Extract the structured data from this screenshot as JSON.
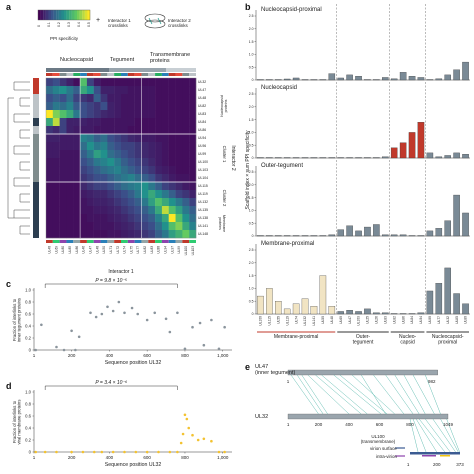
{
  "panel_letters": {
    "a": "a",
    "b": "b",
    "c": "c",
    "d": "d",
    "e": "e"
  },
  "colors": {
    "nucleocapsid_bar": "#c0392b",
    "membrane_bar": "#f1e4c3",
    "tegument_bar": "#7a8a96",
    "dark_bar": "#6c7a86",
    "scatter_c": "#8a949c",
    "scatter_d": "#f3c230",
    "ul47_bar": "#9aa5ad",
    "ul32_bar": "#9aa5ad",
    "link_lines": "#4bb3a6",
    "heatmap_low": "#440154",
    "heatmap_high": "#fde725"
  },
  "panel_a": {
    "legend": {
      "colorbar_label": "PPI specificity",
      "colorbar_ticks": [
        "0",
        "0.1",
        "0.2",
        "0.3",
        "0.4",
        "0.5"
      ],
      "plus": "+",
      "interactor1_label": "Interactor 1\ncrosslinks",
      "interactor2_label": "Interactor 2\ncrosslinks"
    },
    "top_groups": [
      "Nucleocapsid",
      "Tegument",
      "Transmembrane\nproteins"
    ],
    "side_groups": [
      "Nucleocapsid\nproteins",
      "Cluster 1",
      "Cluster 2",
      "Membrane\nproteins"
    ],
    "axis_x": "Interactor 1",
    "axis_y": "Interactor 2",
    "row_labels": [
      "UL32",
      "UL47",
      "UL48",
      "UL82",
      "UL83",
      "UL84",
      "UL86",
      "UL94",
      "UL96",
      "UL99",
      "UL100",
      "UL103",
      "UL104",
      "UL115",
      "UL119",
      "UL132",
      "UL135",
      "UL138",
      "UL141",
      "UL148"
    ],
    "col_labels": [
      "UL48",
      "UL69",
      "UL80",
      "UL85",
      "UL86",
      "UL46",
      "UL47",
      "UL48",
      "UL50",
      "UL71",
      "UL72",
      "UL74",
      "UL75",
      "UL77",
      "UL82",
      "UL83",
      "UL88",
      "UL94",
      "UL97",
      "UL99",
      "UL100",
      "UL103"
    ]
  },
  "panel_b": {
    "ylabel": "Scaffold index × sum PPI specificity",
    "subplots": [
      {
        "title": "Nucleocapsid-proximal"
      },
      {
        "title": "Nucleocapsid"
      },
      {
        "title": "Outer-tegument"
      },
      {
        "title": "Membrane-proximal"
      }
    ],
    "y_ticks": [
      "0",
      "0.5",
      "1.0",
      "1.5",
      "2.0",
      "2.5"
    ],
    "x_labels": [
      "UL100",
      "UL115",
      "UL55",
      "UL119",
      "UL74",
      "UL132",
      "UL141",
      "UL50",
      "UL48",
      "UL69",
      "UL47",
      "UL103",
      "UL25",
      "UL26",
      "UL83",
      "UL82",
      "UL86",
      "UL84",
      "UL94",
      "UL99",
      "UL77",
      "UL32",
      "UL85",
      "UL80"
    ],
    "group_labels": [
      "Membrane-proximal",
      "Outer-\ntegument",
      "Nucleo-\ncapsid",
      "Nucleocapsid-\nproximal"
    ]
  },
  "panel_c": {
    "annotation": "P = 9.8 × 10⁻⁵",
    "ylabel": "Fraction of interlinks to\ninner tegument proteins",
    "xlabel": "Sequence position UL32",
    "y_ticks": [
      "0",
      "0.2",
      "0.4",
      "0.6",
      "0.8",
      "1.0"
    ],
    "x_ticks": [
      "1",
      "200",
      "400",
      "600",
      "800",
      "1,000"
    ]
  },
  "panel_d": {
    "annotation": "P = 3.4 × 10⁻⁶",
    "ylabel": "Fraction of interlinks to\nviral membrane proteins",
    "xlabel": "Sequence position UL32",
    "y_ticks": [
      "0",
      "0.2",
      "0.4",
      "0.6",
      "0.8",
      "1.0"
    ],
    "x_ticks": [
      "1",
      "200",
      "400",
      "600",
      "800",
      "1,000"
    ]
  },
  "panel_e": {
    "ul47_label": "UL47\n(inner tegument)",
    "ul32_label": "UL32",
    "ul100_label": "UL100\n(transmembrane)",
    "virion_surface": "virion surface",
    "intra_virion": "intra-virion",
    "ul47_ticks": [
      "1",
      "982"
    ],
    "ul32_ticks": [
      "1",
      "200",
      "400",
      "600",
      "800",
      "1049"
    ],
    "ul100_ticks": [
      "1",
      "200",
      "373"
    ]
  },
  "chart_data": [
    {
      "type": "heatmap",
      "panel": "a",
      "rows": 20,
      "cols": 22,
      "value_range": [
        0,
        0.5
      ],
      "matrix": [
        [
          0.1,
          0.12,
          0.08,
          0.05,
          0.02,
          0.35,
          0.1,
          0.04,
          0.02,
          0.02,
          0.02,
          0.02,
          0.02,
          0.02,
          0.02,
          0.02,
          0.02,
          0.02,
          0.02,
          0.02,
          0.02,
          0.02
        ],
        [
          0.18,
          0.22,
          0.25,
          0.2,
          0.15,
          0.3,
          0.25,
          0.12,
          0.05,
          0.05,
          0.04,
          0.04,
          0.03,
          0.03,
          0.03,
          0.03,
          0.02,
          0.02,
          0.02,
          0.02,
          0.02,
          0.02
        ],
        [
          0.12,
          0.15,
          0.12,
          0.18,
          0.1,
          0.08,
          0.06,
          0.15,
          0.08,
          0.04,
          0.04,
          0.03,
          0.03,
          0.03,
          0.03,
          0.03,
          0.02,
          0.02,
          0.02,
          0.02,
          0.02,
          0.02
        ],
        [
          0.15,
          0.2,
          0.18,
          0.22,
          0.14,
          0.12,
          0.1,
          0.08,
          0.12,
          0.05,
          0.04,
          0.03,
          0.03,
          0.03,
          0.03,
          0.03,
          0.02,
          0.02,
          0.02,
          0.02,
          0.02,
          0.02
        ],
        [
          0.5,
          0.4,
          0.35,
          0.3,
          0.2,
          0.12,
          0.1,
          0.08,
          0.06,
          0.05,
          0.04,
          0.03,
          0.03,
          0.03,
          0.03,
          0.03,
          0.02,
          0.02,
          0.02,
          0.02,
          0.02,
          0.02
        ],
        [
          0.3,
          0.45,
          0.1,
          0.05,
          0.05,
          0.05,
          0.04,
          0.04,
          0.03,
          0.03,
          0.03,
          0.03,
          0.03,
          0.02,
          0.02,
          0.02,
          0.02,
          0.02,
          0.02,
          0.02,
          0.02,
          0.02
        ],
        [
          0.08,
          0.06,
          0.1,
          0.05,
          0.04,
          0.04,
          0.04,
          0.03,
          0.03,
          0.03,
          0.03,
          0.03,
          0.02,
          0.02,
          0.02,
          0.02,
          0.02,
          0.02,
          0.02,
          0.02,
          0.02,
          0.02
        ],
        [
          0.05,
          0.05,
          0.04,
          0.04,
          0.04,
          0.22,
          0.2,
          0.15,
          0.18,
          0.12,
          0.1,
          0.08,
          0.06,
          0.05,
          0.04,
          0.04,
          0.03,
          0.03,
          0.02,
          0.02,
          0.02,
          0.02
        ],
        [
          0.04,
          0.04,
          0.04,
          0.04,
          0.04,
          0.18,
          0.25,
          0.2,
          0.22,
          0.15,
          0.12,
          0.1,
          0.1,
          0.08,
          0.06,
          0.05,
          0.04,
          0.03,
          0.02,
          0.02,
          0.02,
          0.02
        ],
        [
          0.04,
          0.04,
          0.03,
          0.03,
          0.03,
          0.15,
          0.2,
          0.28,
          0.25,
          0.18,
          0.15,
          0.12,
          0.1,
          0.08,
          0.06,
          0.05,
          0.04,
          0.03,
          0.02,
          0.02,
          0.02,
          0.02
        ],
        [
          0.03,
          0.03,
          0.03,
          0.03,
          0.03,
          0.12,
          0.15,
          0.2,
          0.22,
          0.25,
          0.2,
          0.15,
          0.12,
          0.1,
          0.08,
          0.06,
          0.04,
          0.03,
          0.02,
          0.02,
          0.02,
          0.02
        ],
        [
          0.03,
          0.03,
          0.03,
          0.03,
          0.03,
          0.1,
          0.12,
          0.15,
          0.18,
          0.2,
          0.22,
          0.18,
          0.15,
          0.12,
          0.1,
          0.08,
          0.05,
          0.04,
          0.03,
          0.02,
          0.02,
          0.02
        ],
        [
          0.03,
          0.03,
          0.03,
          0.03,
          0.03,
          0.08,
          0.1,
          0.12,
          0.12,
          0.15,
          0.18,
          0.2,
          0.22,
          0.18,
          0.15,
          0.12,
          0.08,
          0.06,
          0.04,
          0.03,
          0.03,
          0.02
        ],
        [
          0.02,
          0.02,
          0.02,
          0.02,
          0.02,
          0.06,
          0.08,
          0.1,
          0.1,
          0.12,
          0.15,
          0.18,
          0.2,
          0.22,
          0.25,
          0.2,
          0.15,
          0.1,
          0.08,
          0.06,
          0.04,
          0.03
        ],
        [
          0.02,
          0.02,
          0.02,
          0.02,
          0.02,
          0.04,
          0.05,
          0.06,
          0.06,
          0.08,
          0.1,
          0.12,
          0.15,
          0.2,
          0.25,
          0.3,
          0.25,
          0.2,
          0.15,
          0.1,
          0.08,
          0.05
        ],
        [
          0.02,
          0.02,
          0.02,
          0.02,
          0.02,
          0.03,
          0.04,
          0.05,
          0.05,
          0.06,
          0.08,
          0.1,
          0.12,
          0.15,
          0.2,
          0.28,
          0.35,
          0.3,
          0.25,
          0.2,
          0.15,
          0.1
        ],
        [
          0.02,
          0.02,
          0.02,
          0.02,
          0.02,
          0.03,
          0.03,
          0.04,
          0.04,
          0.05,
          0.06,
          0.08,
          0.1,
          0.12,
          0.15,
          0.2,
          0.3,
          0.45,
          0.35,
          0.28,
          0.2,
          0.15
        ],
        [
          0.02,
          0.02,
          0.02,
          0.02,
          0.02,
          0.02,
          0.03,
          0.03,
          0.03,
          0.04,
          0.05,
          0.06,
          0.08,
          0.1,
          0.12,
          0.15,
          0.22,
          0.3,
          0.5,
          0.35,
          0.25,
          0.18
        ],
        [
          0.02,
          0.02,
          0.02,
          0.02,
          0.02,
          0.02,
          0.02,
          0.03,
          0.03,
          0.03,
          0.04,
          0.05,
          0.06,
          0.08,
          0.1,
          0.12,
          0.18,
          0.25,
          0.35,
          0.4,
          0.3,
          0.22
        ],
        [
          0.02,
          0.02,
          0.02,
          0.02,
          0.02,
          0.02,
          0.02,
          0.02,
          0.02,
          0.03,
          0.03,
          0.04,
          0.05,
          0.06,
          0.08,
          0.1,
          0.15,
          0.2,
          0.28,
          0.32,
          0.38,
          0.3
        ]
      ]
    },
    {
      "type": "bar",
      "panel": "b",
      "categories": [
        "UL100",
        "UL115",
        "UL55",
        "UL119",
        "UL74",
        "UL132",
        "UL141",
        "UL50",
        "UL48",
        "UL69",
        "UL47",
        "UL103",
        "UL25",
        "UL26",
        "UL83",
        "UL82",
        "UL86",
        "UL84",
        "UL94",
        "UL99",
        "UL77",
        "UL32",
        "UL85",
        "UL80"
      ],
      "group_sizes": [
        9,
        6,
        4,
        5
      ],
      "ylim": [
        0,
        2.5
      ],
      "series": [
        {
          "name": "Nucleocapsid-proximal",
          "values": [
            0.02,
            0.02,
            0.02,
            0.04,
            0.08,
            0.02,
            0.02,
            0.02,
            0.25,
            0.08,
            0.2,
            0.15,
            0.02,
            0.02,
            0.1,
            0.05,
            0.3,
            0.15,
            0.1,
            0.02,
            0.05,
            0.2,
            0.4,
            0.7
          ]
        },
        {
          "name": "Nucleocapsid",
          "values": [
            0.02,
            0.02,
            0.02,
            0.02,
            0.02,
            0.02,
            0.02,
            0.02,
            0.02,
            0.02,
            0.02,
            0.02,
            0.02,
            0.02,
            0.05,
            0.4,
            0.6,
            1.0,
            1.4,
            0.2,
            0.05,
            0.1,
            0.2,
            0.15
          ]
        },
        {
          "name": "Outer-tegument",
          "values": [
            0.02,
            0.02,
            0.02,
            0.02,
            0.02,
            0.02,
            0.02,
            0.02,
            0.05,
            0.25,
            0.4,
            0.2,
            0.35,
            0.45,
            0.05,
            0.05,
            0.05,
            0.02,
            0.02,
            0.2,
            0.3,
            0.6,
            1.6,
            0.9
          ]
        },
        {
          "name": "Membrane-proximal",
          "values": [
            0.7,
            1.0,
            0.5,
            0.2,
            0.4,
            0.6,
            0.3,
            1.5,
            0.3,
            0.1,
            0.15,
            0.1,
            0.2,
            0.05,
            0.05,
            0.02,
            0.02,
            0.02,
            0.05,
            0.9,
            1.2,
            1.8,
            0.8,
            0.4
          ]
        }
      ]
    },
    {
      "type": "scatter",
      "panel": "c",
      "xlabel": "Sequence position UL32",
      "ylabel": "Fraction of interlinks to inner tegument proteins",
      "xlim": [
        1,
        1049
      ],
      "ylim": [
        0,
        1.0
      ],
      "x": [
        10,
        40,
        120,
        160,
        200,
        220,
        240,
        300,
        330,
        360,
        390,
        420,
        450,
        480,
        520,
        550,
        600,
        640,
        700,
        720,
        760,
        800,
        840,
        880,
        900,
        940,
        980,
        1010
      ],
      "y": [
        0.0,
        0.42,
        0.05,
        0.0,
        0.32,
        0.0,
        0.22,
        0.62,
        0.55,
        0.6,
        0.72,
        0.65,
        0.8,
        0.62,
        0.7,
        0.6,
        0.5,
        0.62,
        0.52,
        0.3,
        0.62,
        0.02,
        0.38,
        0.45,
        0.08,
        0.5,
        0.02,
        0.38
      ]
    },
    {
      "type": "scatter",
      "panel": "d",
      "xlabel": "Sequence position UL32",
      "ylabel": "Fraction of interlinks to viral membrane proteins",
      "xlim": [
        1,
        1049
      ],
      "ylim": [
        0,
        1.0
      ],
      "x": [
        10,
        60,
        120,
        200,
        260,
        320,
        360,
        420,
        480,
        540,
        600,
        660,
        720,
        760,
        780,
        790,
        800,
        810,
        820,
        840,
        870,
        900,
        940,
        980,
        1010
      ],
      "y": [
        0.0,
        0.0,
        0.0,
        0.0,
        0.0,
        0.0,
        0.0,
        0.0,
        0.0,
        0.0,
        0.0,
        0.0,
        0.0,
        0.0,
        0.15,
        0.3,
        0.62,
        0.55,
        0.4,
        0.28,
        0.2,
        0.22,
        0.18,
        0.0,
        0.0
      ]
    },
    {
      "type": "network",
      "panel": "e",
      "ul47_length": 982,
      "ul32_length": 1049,
      "ul100_length": 373,
      "ul47_ul32_links": [
        [
          20,
          200
        ],
        [
          60,
          230
        ],
        [
          90,
          260
        ],
        [
          130,
          400
        ],
        [
          180,
          480
        ],
        [
          220,
          520
        ],
        [
          300,
          610
        ],
        [
          340,
          650
        ],
        [
          420,
          700
        ],
        [
          480,
          640
        ],
        [
          560,
          760
        ],
        [
          640,
          820
        ],
        [
          700,
          860
        ],
        [
          760,
          900
        ],
        [
          820,
          960
        ],
        [
          900,
          1000
        ]
      ],
      "ul32_ul100_links": [
        [
          800,
          60
        ],
        [
          820,
          120
        ],
        [
          840,
          200
        ],
        [
          860,
          260
        ],
        [
          900,
          300
        ],
        [
          950,
          340
        ],
        [
          1000,
          360
        ],
        [
          1040,
          370
        ]
      ]
    }
  ]
}
